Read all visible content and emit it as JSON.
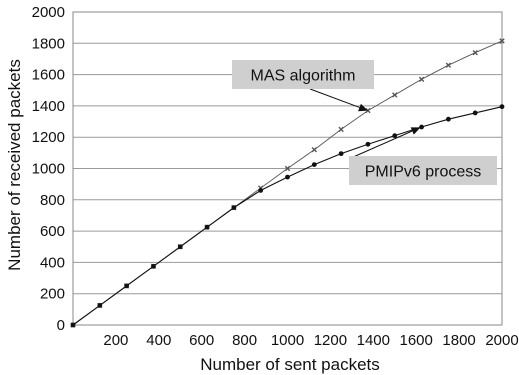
{
  "chart_data": {
    "type": "line",
    "title": "",
    "xlabel": "Number of sent packets",
    "ylabel": "Number of received packets",
    "xlim": [
      0,
      2000
    ],
    "ylim": [
      0,
      2000
    ],
    "xticks": [
      200,
      400,
      600,
      800,
      1000,
      1200,
      1400,
      1600,
      1800,
      2000
    ],
    "yticks": [
      0,
      200,
      400,
      600,
      800,
      1000,
      1200,
      1400,
      1600,
      1800,
      2000
    ],
    "grid": "horizontal",
    "series": [
      {
        "name": "MAS algorithm",
        "color": "#555555",
        "marker": "x",
        "x": [
          0,
          125,
          250,
          375,
          500,
          625,
          750,
          875,
          1000,
          1125,
          1250,
          1375,
          1500,
          1625,
          1750,
          1875,
          2000
        ],
        "y": [
          0,
          125,
          250,
          375,
          500,
          625,
          750,
          875,
          1000,
          1120,
          1250,
          1370,
          1470,
          1570,
          1660,
          1740,
          1815
        ]
      },
      {
        "name": "PMIPv6 process",
        "color": "#111111",
        "marker": "dot",
        "x": [
          0,
          125,
          250,
          375,
          500,
          625,
          750,
          875,
          1000,
          1125,
          1250,
          1375,
          1500,
          1625,
          1750,
          1875,
          2000
        ],
        "y": [
          0,
          125,
          250,
          375,
          500,
          625,
          750,
          860,
          945,
          1025,
          1095,
          1155,
          1210,
          1265,
          1315,
          1355,
          1395
        ]
      }
    ],
    "annotations": [
      {
        "text": "MAS algorithm",
        "series": 0,
        "point_x": 1375
      },
      {
        "text": "PMIPv6 process",
        "series": 1,
        "point_x": 1620
      }
    ]
  }
}
